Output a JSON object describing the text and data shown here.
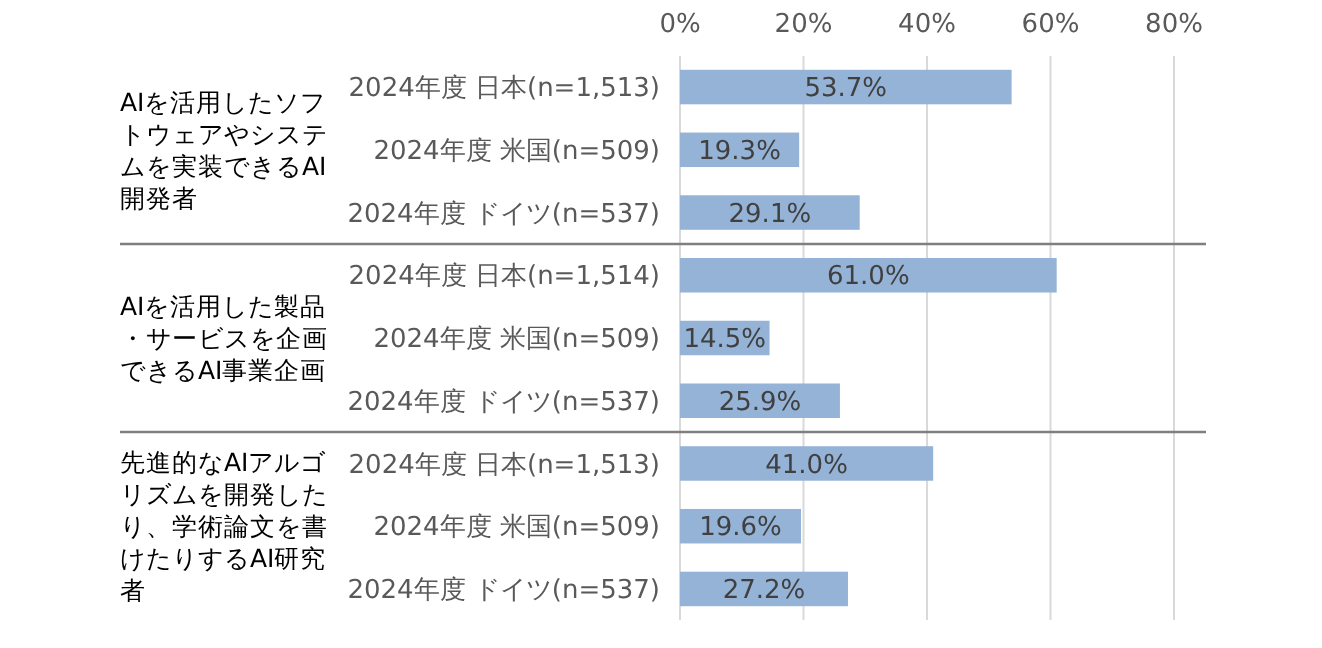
{
  "chart_data": {
    "type": "bar",
    "orientation": "horizontal",
    "categories": [
      "2024年度 日本(n=1,513)",
      "2024年度 米国(n=509)",
      "2024年度 ドイツ(n=537)",
      "2024年度 日本(n=1,514)",
      "2024年度 米国(n=509)",
      "2024年度 ドイツ(n=537)",
      "2024年度 日本(n=1,513)",
      "2024年度 米国(n=509)",
      "2024年度 ドイツ(n=537)"
    ],
    "values": [
      53.7,
      19.3,
      29.1,
      61.0,
      14.5,
      25.9,
      41.0,
      19.6,
      27.2
    ],
    "value_labels": [
      "53.7%",
      "19.3%",
      "29.1%",
      "61.0%",
      "14.5%",
      "25.9%",
      "41.0%",
      "19.6%",
      "27.2%"
    ],
    "color": "#95b3d7",
    "xlim": [
      0,
      80
    ],
    "xticks": [
      {
        "value": 0,
        "label": "0%"
      },
      {
        "value": 20,
        "label": "20%"
      },
      {
        "value": 40,
        "label": "40%"
      },
      {
        "value": 60,
        "label": "60%"
      },
      {
        "value": 80,
        "label": "80%"
      }
    ],
    "grid": "x",
    "annotations": [
      "AIを活用したソフトウェアやシステムを実装できるAI開発者",
      "AIを活用した製品・サービスを企画できるAI事業企画",
      "先進的なAIアルゴリズムを開発したり、学術論文を書けたりするAI研究者"
    ]
  }
}
